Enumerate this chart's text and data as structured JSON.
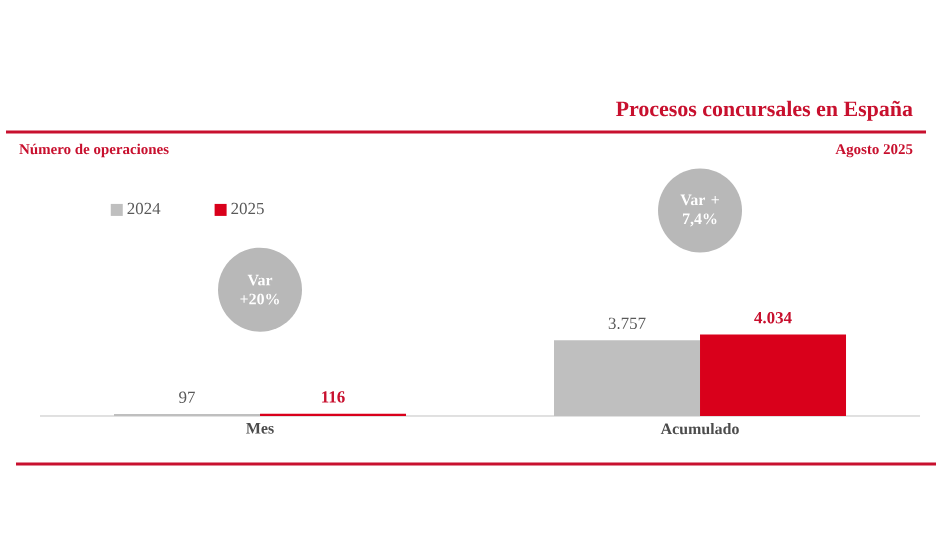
{
  "chart_data": {
    "type": "bar",
    "title": "Procesos concursales en España",
    "subtitle": "Número de operaciones",
    "categories": [
      "Mes",
      "Acumulado"
    ],
    "series": [
      {
        "name": "2024",
        "color": "#bfbfbf",
        "values": [
          97,
          3757
        ],
        "value_labels": [
          "97",
          "3.757"
        ]
      },
      {
        "name": "2025",
        "color": "#d9001b",
        "values": [
          116,
          4034
        ],
        "value_labels": [
          "116",
          "4.034"
        ]
      }
    ],
    "annotations": [
      "Agosto 2025",
      "Var +20%",
      "Var + 7,4%"
    ],
    "legend": "top left"
  }
}
